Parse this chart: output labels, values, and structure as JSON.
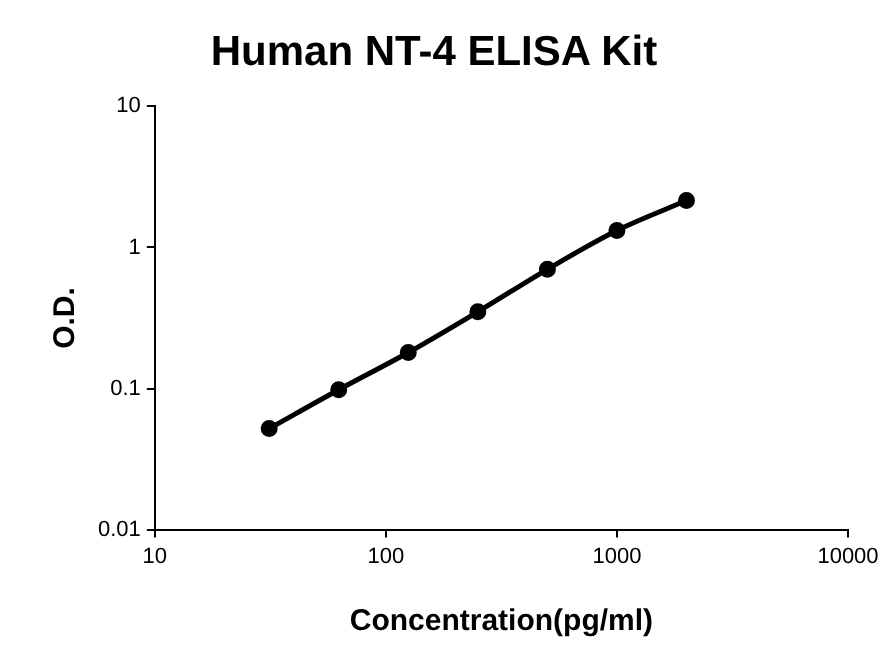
{
  "chart_data": {
    "type": "line",
    "title": "Human NT-4 ELISA Kit",
    "xlabel": "Concentration(pg/ml)",
    "ylabel": "O.D.",
    "x": [
      31.25,
      62.5,
      125,
      250,
      500,
      1000,
      2000
    ],
    "series": [
      {
        "color": "#000000",
        "values": [
          0.052,
          0.098,
          0.18,
          0.35,
          0.7,
          1.32,
          2.15
        ]
      }
    ],
    "log": "xy",
    "xlim": [
      10,
      10000
    ],
    "xticks": [
      10,
      100,
      1000,
      10000
    ],
    "ylim": [
      0.01,
      10
    ],
    "yticks": [
      0.01,
      0.1,
      1,
      10
    ],
    "grid": false,
    "legend": false,
    "marker": "circle",
    "line_style": "solid"
  }
}
